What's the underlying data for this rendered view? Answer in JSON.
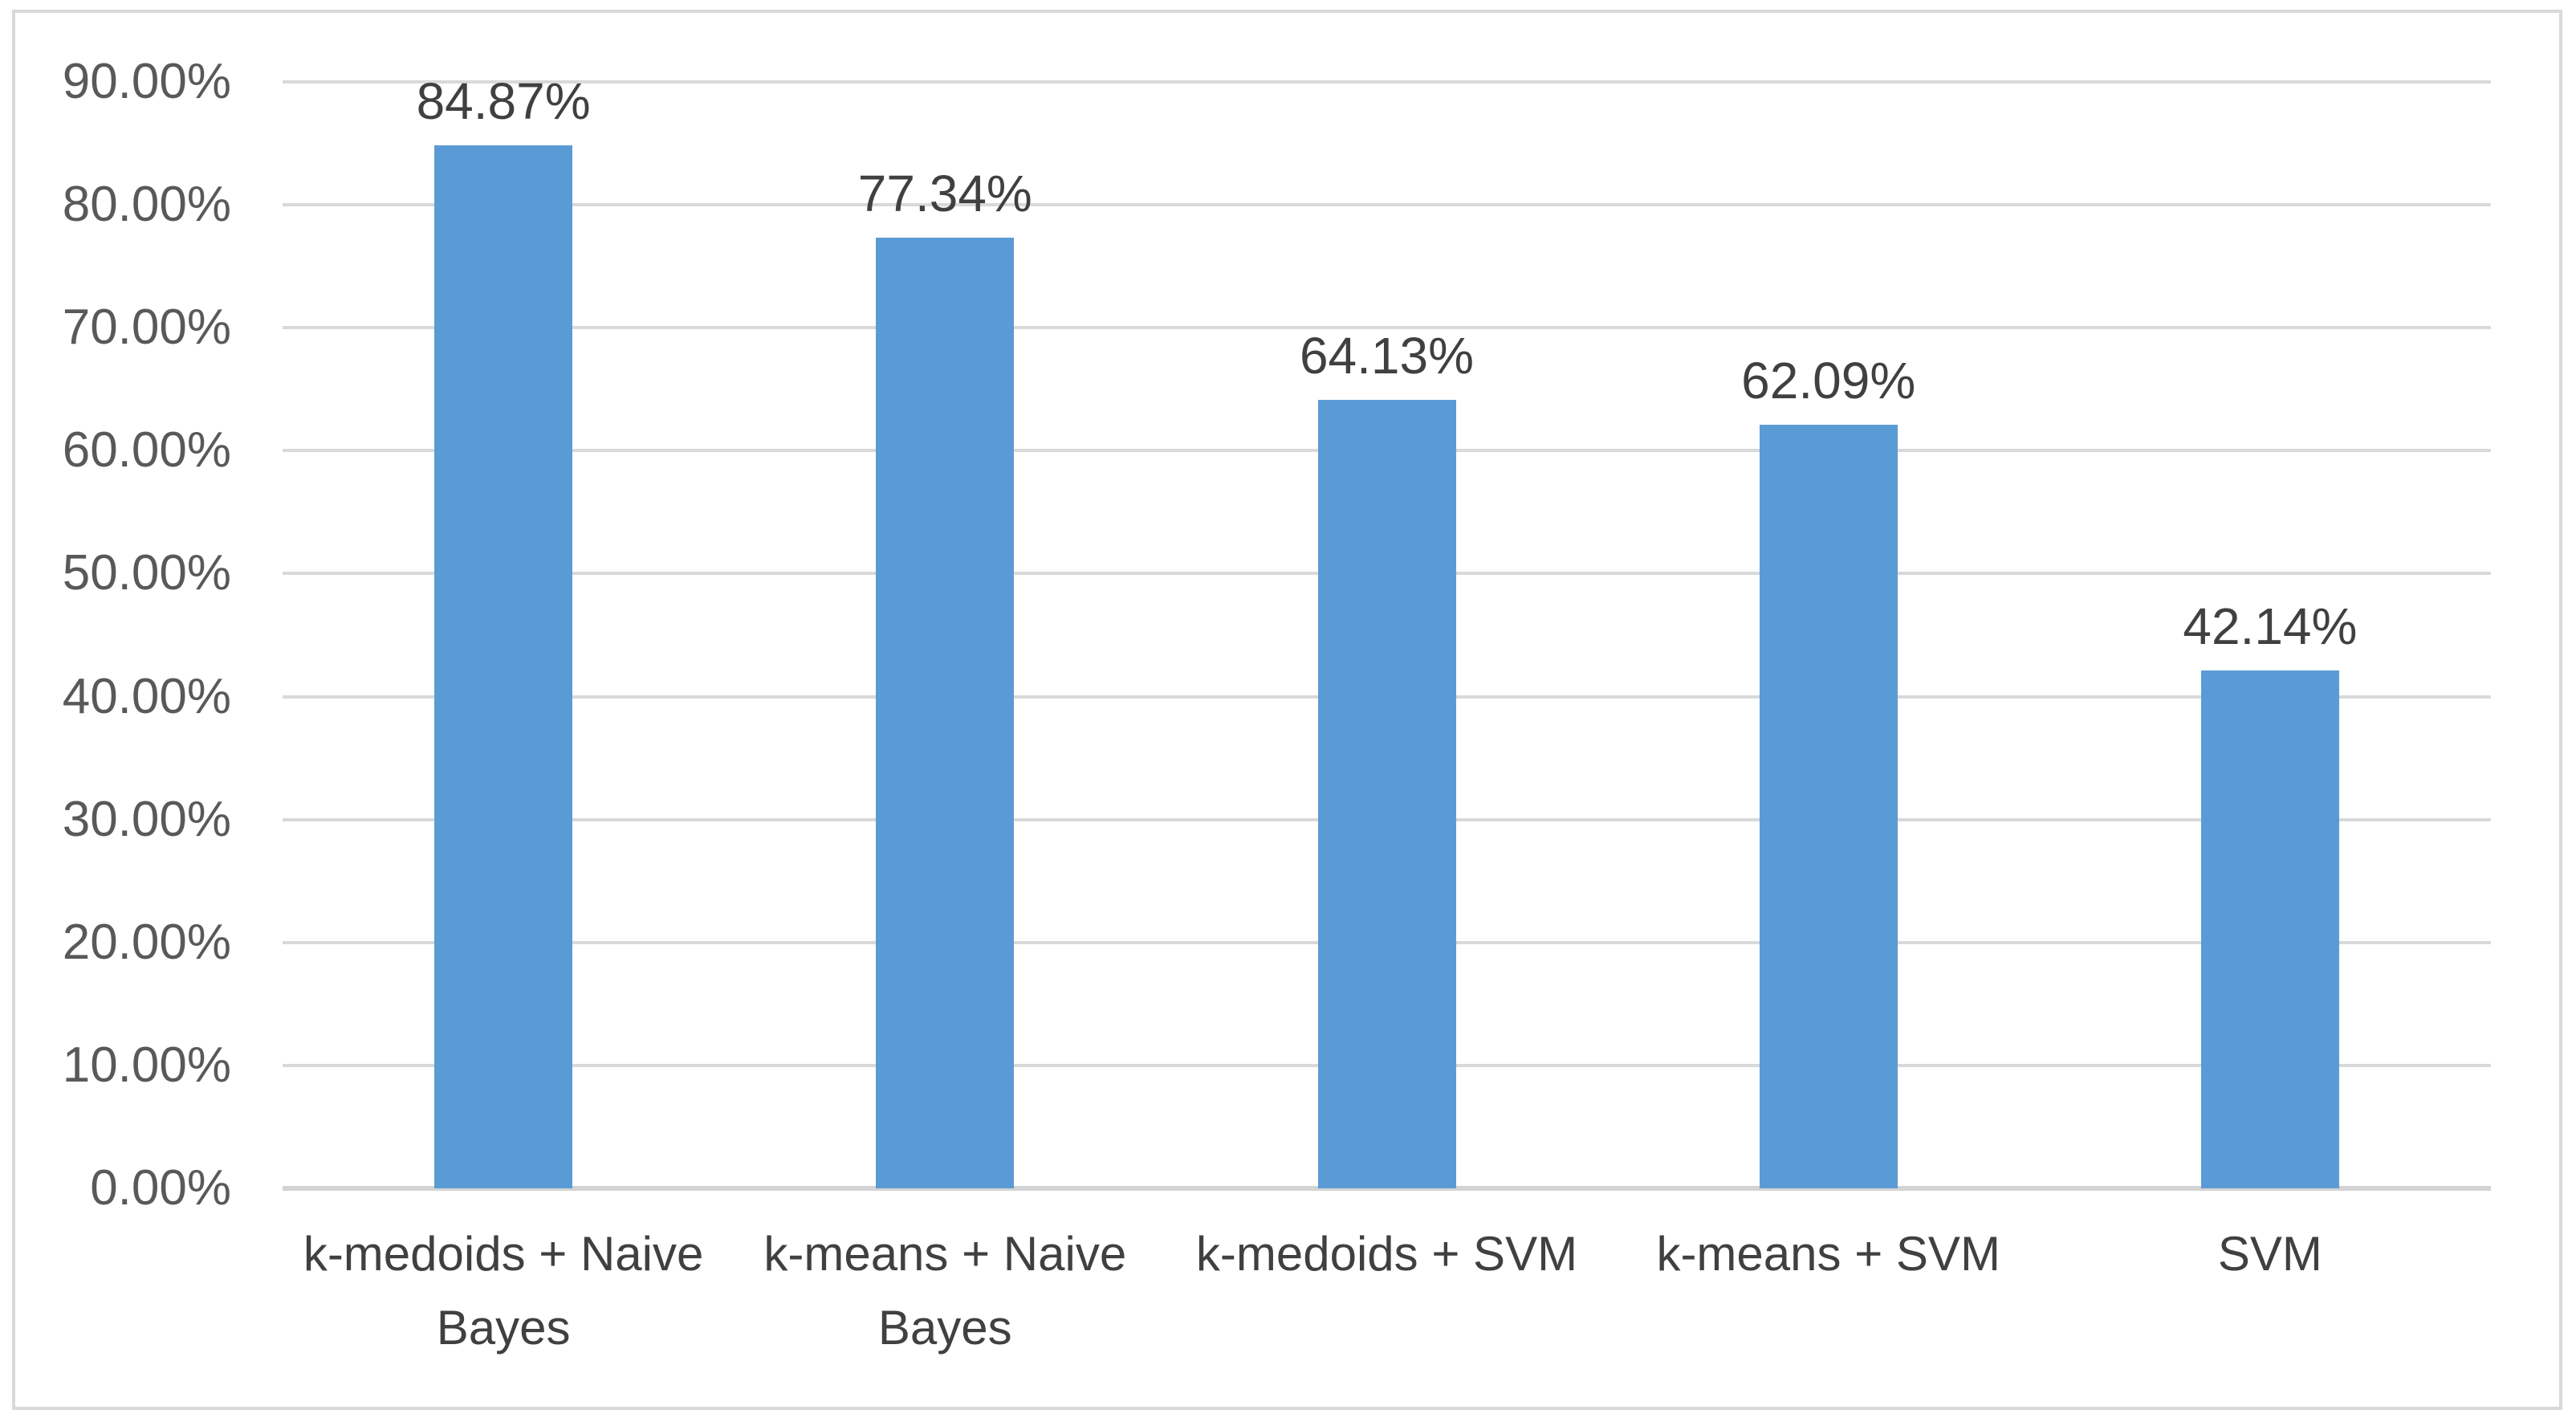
{
  "chart_data": {
    "type": "bar",
    "title": "",
    "xlabel": "",
    "ylabel": "",
    "categories": [
      "k-medoids + Naive Bayes",
      "k-means + Naive Bayes",
      "k-medoids + SVM",
      "k-means + SVM",
      "SVM"
    ],
    "values": [
      84.87,
      77.34,
      64.13,
      62.09,
      42.14
    ],
    "bar_labels": [
      "84.87%",
      "77.34%",
      "64.13%",
      "62.09%",
      "42.14%"
    ],
    "ylim": [
      0,
      90
    ],
    "ytick_step": 10,
    "yticks": [
      {
        "value": 90,
        "label": "90.00%"
      },
      {
        "value": 80,
        "label": "80.00%"
      },
      {
        "value": 70,
        "label": "70.00%"
      },
      {
        "value": 60,
        "label": "60.00%"
      },
      {
        "value": 50,
        "label": "50.00%"
      },
      {
        "value": 40,
        "label": "40.00%"
      },
      {
        "value": 30,
        "label": "30.00%"
      },
      {
        "value": 20,
        "label": "20.00%"
      },
      {
        "value": 10,
        "label": "10.00%"
      },
      {
        "value": 0,
        "label": "0.00%"
      }
    ],
    "grid": true,
    "legend": false,
    "colors": {
      "bar": "#5B9BD5",
      "gridline": "#D9D9D9",
      "axis_line": "#D3D3D3",
      "border": "#D9D9D9",
      "tick_text": "#595959",
      "value_label_text": "#404040",
      "category_text": "#404040",
      "background": "#FFFFFF"
    }
  }
}
